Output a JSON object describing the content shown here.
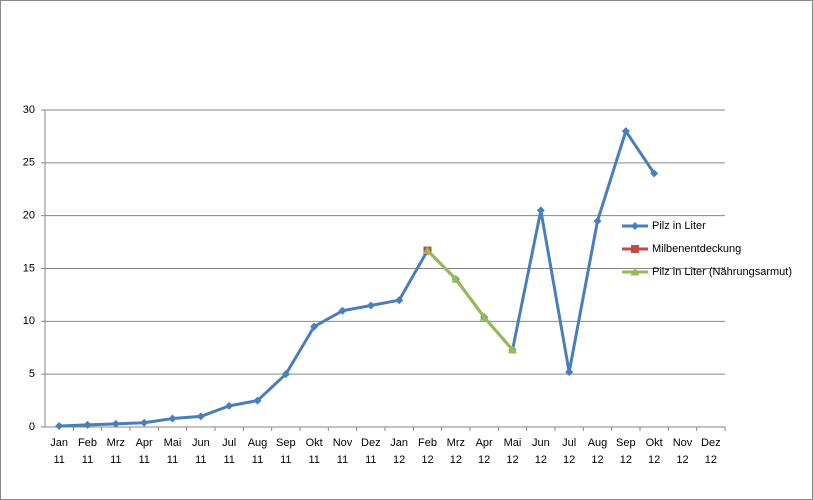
{
  "chart_data": {
    "type": "line",
    "categories": [
      [
        "Jan",
        "11"
      ],
      [
        "Feb",
        "11"
      ],
      [
        "Mrz",
        "11"
      ],
      [
        "Apr",
        "11"
      ],
      [
        "Mai",
        "11"
      ],
      [
        "Jun",
        "11"
      ],
      [
        "Jul",
        "11"
      ],
      [
        "Aug",
        "11"
      ],
      [
        "Sep",
        "11"
      ],
      [
        "Okt",
        "11"
      ],
      [
        "Nov",
        "11"
      ],
      [
        "Dez",
        "11"
      ],
      [
        "Jan",
        "12"
      ],
      [
        "Feb",
        "12"
      ],
      [
        "Mrz",
        "12"
      ],
      [
        "Apr",
        "12"
      ],
      [
        "Mai",
        "12"
      ],
      [
        "Jun",
        "12"
      ],
      [
        "Jul",
        "12"
      ],
      [
        "Aug",
        "12"
      ],
      [
        "Sep",
        "12"
      ],
      [
        "Okt",
        "12"
      ],
      [
        "Nov",
        "12"
      ],
      [
        "Dez",
        "12"
      ]
    ],
    "series": [
      {
        "name": "Pilz in Liter",
        "color": "#4a7ebb",
        "marker": "diamond",
        "values": [
          0.1,
          0.2,
          0.3,
          0.4,
          0.8,
          1.0,
          2.0,
          2.5,
          5.0,
          9.5,
          11.0,
          11.5,
          12.0,
          16.7,
          14.0,
          10.4,
          7.3,
          20.5,
          5.2,
          19.5,
          28.0,
          24.0,
          null,
          null
        ]
      },
      {
        "name": "Milbenentdeckung",
        "color": "#be4b48",
        "marker": "square",
        "values": [
          null,
          null,
          null,
          null,
          null,
          null,
          null,
          null,
          null,
          null,
          null,
          null,
          null,
          16.7,
          null,
          null,
          null,
          null,
          null,
          null,
          null,
          null,
          null,
          null
        ]
      },
      {
        "name": "Pilz in Liter (Nährungsarmut)",
        "color": "#98b954",
        "marker": "triangle",
        "values": [
          null,
          null,
          null,
          null,
          null,
          null,
          null,
          null,
          null,
          null,
          null,
          null,
          null,
          16.7,
          14.0,
          10.4,
          7.3,
          null,
          null,
          null,
          null,
          null,
          null,
          null
        ]
      }
    ],
    "ylim": [
      0,
      30
    ],
    "yticks": [
      0,
      5,
      10,
      15,
      20,
      25,
      30
    ],
    "grid": true,
    "legend": "right"
  }
}
